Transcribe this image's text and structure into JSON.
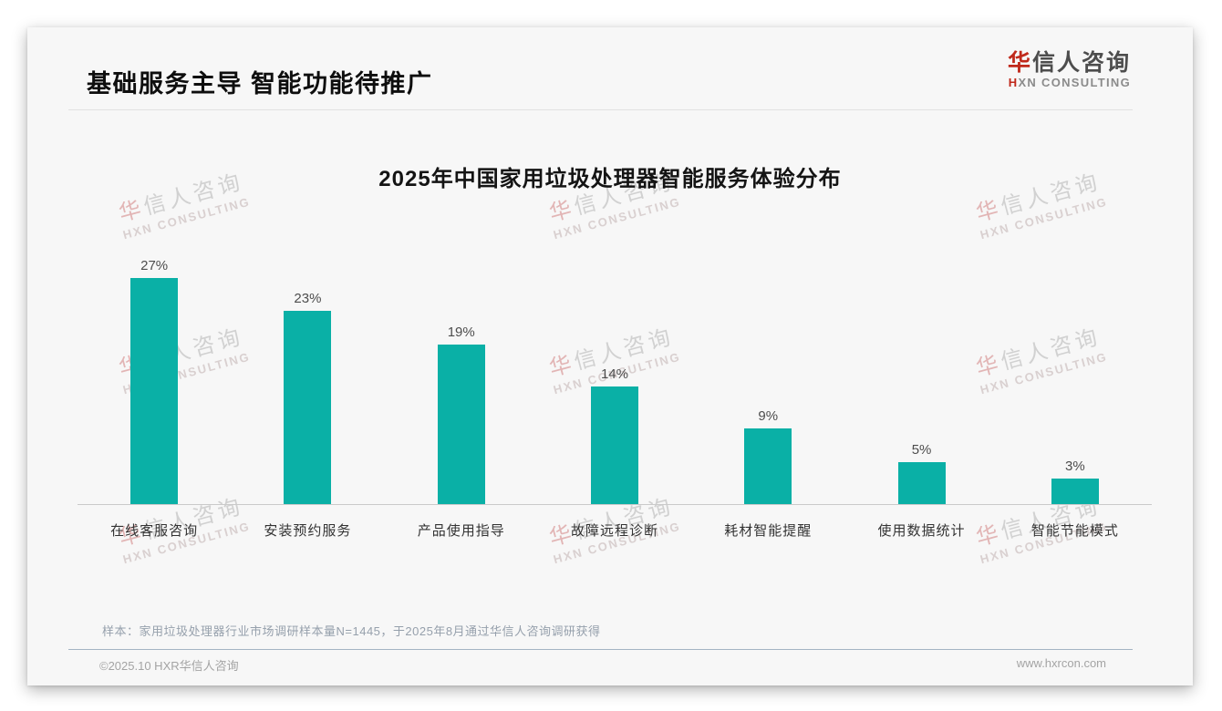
{
  "header": {
    "page_title": "基础服务主导 智能功能待推广",
    "logo": {
      "cn_first": "华",
      "cn_rest": "信人咨询",
      "en_first": "H",
      "en_rest": "XN CONSULTING"
    }
  },
  "watermark": {
    "cn_first": "华",
    "cn_rest": "信人咨询",
    "en": "HXN CONSULTING"
  },
  "chart_data": {
    "type": "bar",
    "title": "2025年中国家用垃圾处理器智能服务体验分布",
    "categories": [
      "在线客服咨询",
      "安装预约服务",
      "产品使用指导",
      "故障远程诊断",
      "耗材智能提醒",
      "使用数据统计",
      "智能节能模式"
    ],
    "values": [
      27,
      23,
      19,
      14,
      9,
      5,
      3
    ],
    "value_labels": [
      "27%",
      "23%",
      "19%",
      "14%",
      "9%",
      "5%",
      "3%"
    ],
    "unit": "%",
    "ylim": [
      0,
      30
    ],
    "bar_color": "#0ab0a6",
    "grid": false,
    "legend": false,
    "xlabel": "",
    "ylabel": ""
  },
  "footer": {
    "sample_note": "样本：家用垃圾处理器行业市场调研样本量N=1445，于2025年8月通过华信人咨询调研获得",
    "copyright": "©2025.10 HXR华信人咨询",
    "website": "www.hxrcon.com"
  }
}
